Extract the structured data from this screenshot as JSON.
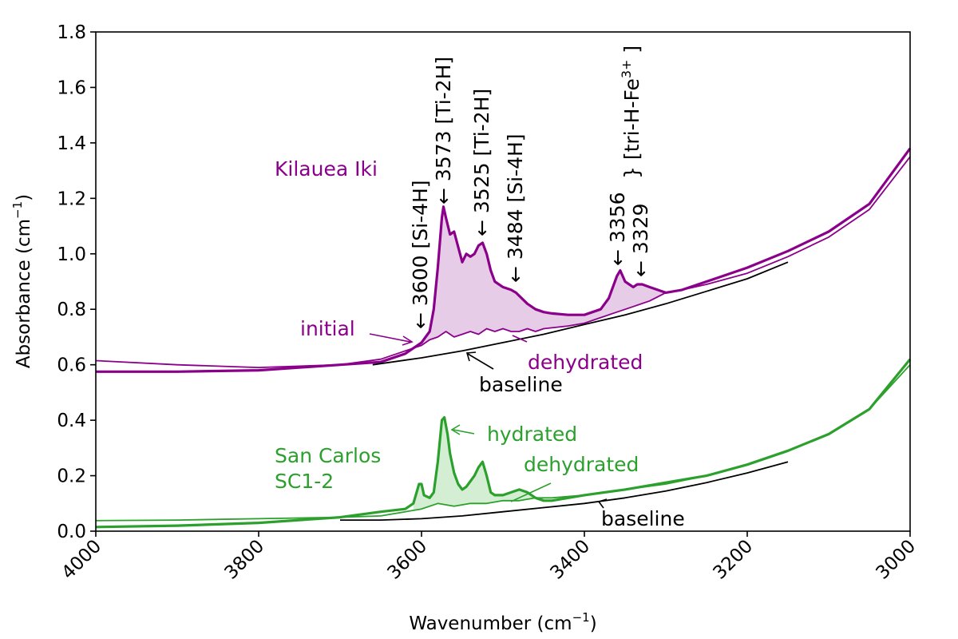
{
  "colors": {
    "kilauea": "#8b008b",
    "sancarlos": "#2ca02c",
    "baseline": "#000000",
    "kilauea_fill": "#e6cce6",
    "sancarlos_fill": "#d4eed4"
  },
  "chart_data": {
    "type": "line",
    "xlabel": "Wavenumber (cm",
    "xlabel_sup": "−1",
    "xlabel_tail": ")",
    "ylabel": "Absorbance (cm",
    "ylabel_sup": "−1",
    "ylabel_tail": ")",
    "xlim": [
      4000,
      3000
    ],
    "ylim": [
      0,
      1.8
    ],
    "x_ticks": [
      "4000",
      "3800",
      "3600",
      "3400",
      "3200",
      "3000"
    ],
    "y_ticks": [
      "0.0",
      "0.2",
      "0.4",
      "0.6",
      "0.8",
      "1.0",
      "1.2",
      "1.4",
      "1.6",
      "1.8"
    ],
    "grid": false,
    "series": [
      {
        "key": "ki_initial",
        "name": "initial",
        "group": "Kilauea Iki",
        "x": [
          4000,
          3900,
          3800,
          3700,
          3650,
          3620,
          3600,
          3590,
          3585,
          3580,
          3575,
          3573,
          3570,
          3565,
          3560,
          3550,
          3545,
          3540,
          3535,
          3530,
          3525,
          3520,
          3515,
          3510,
          3500,
          3490,
          3484,
          3470,
          3460,
          3450,
          3440,
          3420,
          3400,
          3390,
          3380,
          3370,
          3360,
          3356,
          3350,
          3340,
          3335,
          3329,
          3320,
          3300,
          3280,
          3250,
          3200,
          3150,
          3100,
          3050,
          3000
        ],
        "y": [
          0.575,
          0.575,
          0.58,
          0.6,
          0.61,
          0.64,
          0.68,
          0.72,
          0.8,
          0.95,
          1.13,
          1.17,
          1.13,
          1.07,
          1.08,
          0.97,
          1.0,
          0.99,
          1.0,
          1.03,
          1.04,
          1.0,
          0.94,
          0.9,
          0.88,
          0.87,
          0.86,
          0.82,
          0.8,
          0.79,
          0.785,
          0.78,
          0.78,
          0.79,
          0.8,
          0.84,
          0.92,
          0.94,
          0.9,
          0.88,
          0.89,
          0.89,
          0.88,
          0.86,
          0.87,
          0.9,
          0.95,
          1.01,
          1.08,
          1.18,
          1.38
        ]
      },
      {
        "key": "ki_dehydrated",
        "name": "dehydrated",
        "group": "Kilauea Iki",
        "x": [
          4000,
          3900,
          3800,
          3700,
          3650,
          3620,
          3600,
          3590,
          3580,
          3570,
          3560,
          3550,
          3540,
          3530,
          3520,
          3510,
          3500,
          3490,
          3480,
          3470,
          3460,
          3450,
          3420,
          3400,
          3380,
          3360,
          3340,
          3320,
          3300,
          3280,
          3250,
          3200,
          3150,
          3100,
          3050,
          3000
        ],
        "y": [
          0.615,
          0.6,
          0.59,
          0.6,
          0.62,
          0.65,
          0.67,
          0.69,
          0.7,
          0.72,
          0.7,
          0.71,
          0.72,
          0.71,
          0.73,
          0.72,
          0.73,
          0.72,
          0.72,
          0.73,
          0.72,
          0.73,
          0.74,
          0.75,
          0.77,
          0.79,
          0.81,
          0.83,
          0.86,
          0.87,
          0.89,
          0.93,
          0.99,
          1.06,
          1.16,
          1.35
        ]
      },
      {
        "key": "ki_baseline",
        "name": "baseline",
        "group": "Kilauea Iki",
        "x": [
          3660,
          3600,
          3550,
          3500,
          3450,
          3400,
          3350,
          3300,
          3250,
          3200,
          3150
        ],
        "y": [
          0.6,
          0.625,
          0.65,
          0.68,
          0.71,
          0.745,
          0.78,
          0.82,
          0.865,
          0.91,
          0.97
        ]
      },
      {
        "key": "sc_hydrated",
        "name": "hydrated",
        "group": "San Carlos SC1-2",
        "x": [
          4000,
          3900,
          3800,
          3700,
          3650,
          3620,
          3610,
          3603,
          3600,
          3597,
          3590,
          3585,
          3580,
          3575,
          3572,
          3568,
          3565,
          3560,
          3555,
          3550,
          3545,
          3540,
          3535,
          3530,
          3525,
          3520,
          3515,
          3510,
          3500,
          3490,
          3480,
          3470,
          3460,
          3450,
          3440,
          3400,
          3350,
          3300,
          3250,
          3200,
          3150,
          3100,
          3050,
          3000
        ],
        "y": [
          0.015,
          0.02,
          0.03,
          0.05,
          0.07,
          0.08,
          0.1,
          0.17,
          0.17,
          0.13,
          0.12,
          0.14,
          0.25,
          0.4,
          0.41,
          0.35,
          0.28,
          0.21,
          0.17,
          0.15,
          0.16,
          0.18,
          0.2,
          0.23,
          0.25,
          0.2,
          0.14,
          0.13,
          0.13,
          0.14,
          0.15,
          0.14,
          0.12,
          0.11,
          0.11,
          0.13,
          0.15,
          0.175,
          0.2,
          0.24,
          0.29,
          0.35,
          0.44,
          0.62
        ]
      },
      {
        "key": "sc_dehydrated",
        "name": "dehydrated",
        "group": "San Carlos SC1-2",
        "x": [
          4000,
          3900,
          3800,
          3700,
          3650,
          3620,
          3600,
          3580,
          3560,
          3540,
          3520,
          3500,
          3480,
          3460,
          3440,
          3400,
          3350,
          3300,
          3250,
          3200,
          3150,
          3100,
          3050,
          3000
        ],
        "y": [
          0.038,
          0.04,
          0.045,
          0.05,
          0.055,
          0.07,
          0.08,
          0.1,
          0.09,
          0.1,
          0.1,
          0.11,
          0.11,
          0.12,
          0.12,
          0.13,
          0.15,
          0.17,
          0.2,
          0.24,
          0.29,
          0.35,
          0.44,
          0.6
        ]
      },
      {
        "key": "sc_baseline",
        "name": "baseline",
        "group": "San Carlos SC1-2",
        "x": [
          3700,
          3650,
          3600,
          3550,
          3500,
          3450,
          3400,
          3350,
          3300,
          3250,
          3200,
          3150
        ],
        "y": [
          0.04,
          0.04,
          0.045,
          0.055,
          0.07,
          0.085,
          0.1,
          0.12,
          0.145,
          0.175,
          0.21,
          0.25
        ]
      }
    ],
    "annotations": {
      "kilauea_label": "Kilauea Iki",
      "kilauea_initial": "initial",
      "kilauea_dehydrated": "dehydrated",
      "kilauea_baseline": "baseline",
      "sancarlos_label_line1": "San Carlos",
      "sancarlos_label_line2": "SC1-2",
      "sancarlos_hydrated": "hydrated",
      "sancarlos_dehydrated": "dehydrated",
      "sancarlos_baseline": "baseline",
      "peak_3600": "3600 [Si-4H]",
      "peak_3573": "3573 [Ti-2H]",
      "peak_3525": "3525 [Ti-2H]",
      "peak_3484": "3484 [Si-4H]",
      "peak_3356": "3356",
      "peak_3329": "3329",
      "peak_fe_pre": "} [tri-H-Fe",
      "peak_fe_sup": "3+",
      "peak_fe_post": " ]",
      "arrow_glyph": "←"
    }
  }
}
